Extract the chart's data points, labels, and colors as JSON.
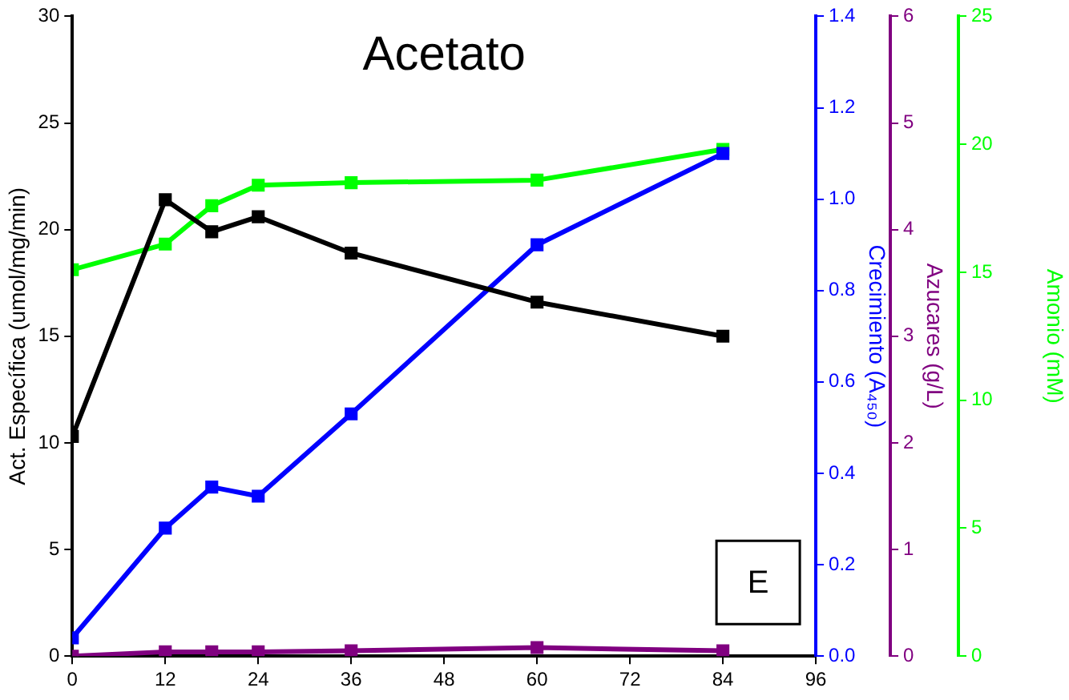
{
  "chart_data": [
    {
      "type": "line",
      "title": "Acetato",
      "ylabel": "Act. Específica (umol/mg/min)",
      "y2label": "Crecimiento (A₄₅₀)",
      "y3label": "Azucares (g/L)",
      "annotations": [
        "E"
      ],
      "x": [
        0,
        12,
        18,
        24,
        36,
        60,
        84
      ],
      "xlim": [
        0,
        96
      ],
      "xticks": [
        0,
        12,
        24,
        36,
        48,
        60,
        72,
        84,
        96
      ],
      "ylim": [
        0,
        30
      ],
      "yticks": [
        0,
        5,
        10,
        15,
        20,
        25,
        30
      ],
      "y2lim": [
        0,
        1.4
      ],
      "y2ticks": [
        {
          "value": 0,
          "label": "0.0"
        },
        {
          "value": 0.2,
          "label": "0.2"
        },
        {
          "value": 0.4,
          "label": "0.4"
        },
        {
          "value": 0.6,
          "label": "0.6"
        },
        {
          "value": 0.8,
          "label": "0.8"
        },
        {
          "value": 1,
          "label": "1.0"
        },
        {
          "value": 1.2,
          "label": "1.2"
        },
        {
          "value": 1.4,
          "label": "1.4"
        }
      ],
      "y3lim": [
        0,
        6
      ],
      "y3ticks": [
        0,
        1,
        2,
        3,
        4,
        5,
        6
      ],
      "grid": false,
      "legend": false,
      "marker": "square",
      "line_style": "solid",
      "series": [
        {
          "color": "#000000",
          "values": [
            10.3,
            21.4,
            19.9,
            20.6,
            18.9,
            16.6,
            15.0
          ]
        },
        {
          "color": "#0000ff",
          "axis": "y2",
          "values": [
            0.04,
            0.28,
            0.37,
            0.35,
            0.53,
            0.9,
            1.1
          ]
        },
        {
          "color": "#800080",
          "axis": "y3",
          "values": [
            0.0,
            0.04,
            0.04,
            0.04,
            0.05,
            0.08,
            0.05
          ]
        }
      ]
    },
    {
      "type": "line",
      "ylabel": "Amonio (mM)",
      "x": [
        0,
        12,
        18,
        24,
        36,
        60,
        84
      ],
      "xlim": [
        0,
        96
      ],
      "ylim": [
        0,
        25
      ],
      "yticks": [
        0,
        5,
        10,
        15,
        20,
        25
      ],
      "tick_labels": "y",
      "grid": false,
      "legend": false,
      "marker": "square",
      "line_style": "solid",
      "series": [
        {
          "color": "#00ff00",
          "values": [
            15.1,
            16.1,
            17.6,
            18.4,
            18.5,
            18.6,
            19.8
          ]
        }
      ]
    }
  ]
}
